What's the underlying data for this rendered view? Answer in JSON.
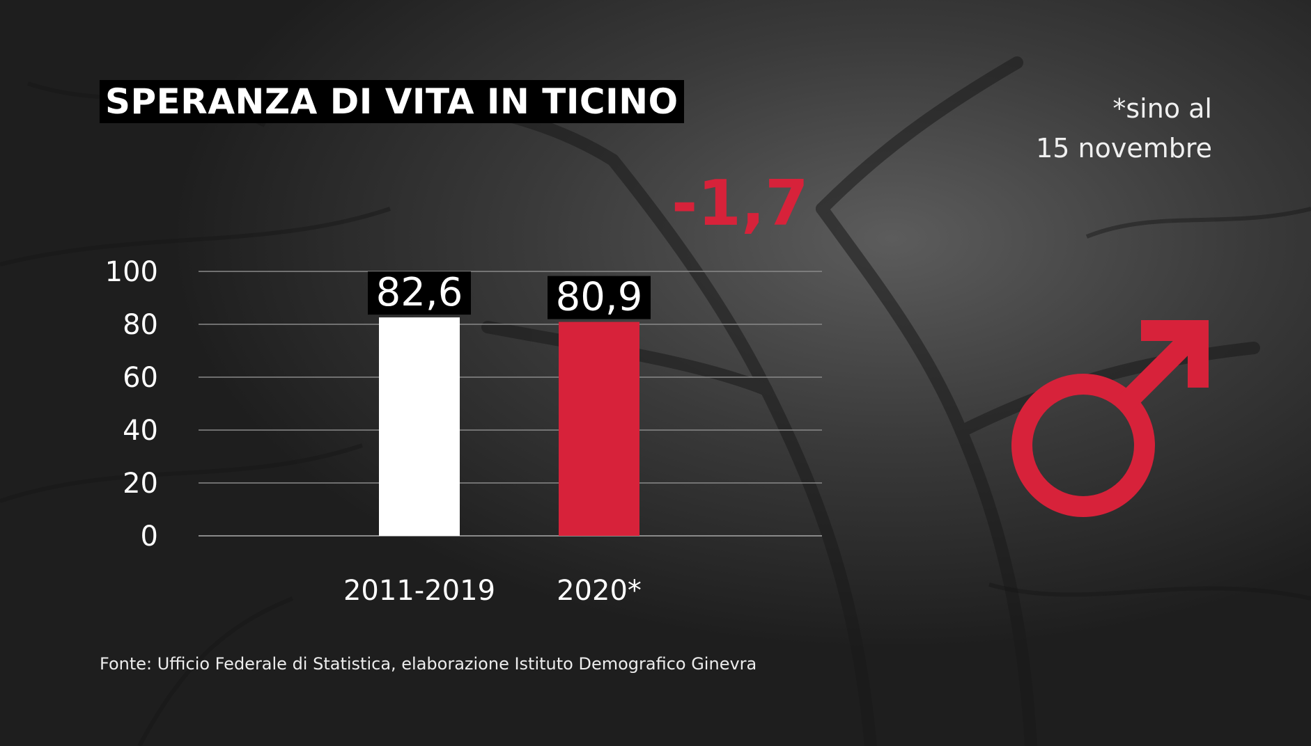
{
  "header": {
    "title": "SPERANZA DI VITA IN TICINO",
    "note_line1": "*sino al",
    "note_line2": "15 novembre"
  },
  "difference_label": "-1,7",
  "source": "Fonte: Ufficio Federale di Statistica, elaborazione Istituto Demografico Ginevra",
  "icon": "male-symbol-icon",
  "colors": {
    "accent": "#d7223a",
    "bar_reference": "#ffffff",
    "bar_2020": "#d7223a",
    "gridline": "#8a8a8a",
    "label_box": "#000000"
  },
  "chart_data": {
    "type": "bar",
    "categories": [
      "2011-2019",
      "2020*"
    ],
    "values": [
      82.6,
      80.9
    ],
    "value_labels": [
      "82,6",
      "80,9"
    ],
    "bar_colors": [
      "#ffffff",
      "#d7223a"
    ],
    "yticks": [
      0,
      20,
      40,
      60,
      80,
      100
    ],
    "ylim": [
      0,
      100
    ],
    "grid": true,
    "title": "SPERANZA DI VITA IN TICINO",
    "xlabel": "",
    "ylabel": ""
  }
}
